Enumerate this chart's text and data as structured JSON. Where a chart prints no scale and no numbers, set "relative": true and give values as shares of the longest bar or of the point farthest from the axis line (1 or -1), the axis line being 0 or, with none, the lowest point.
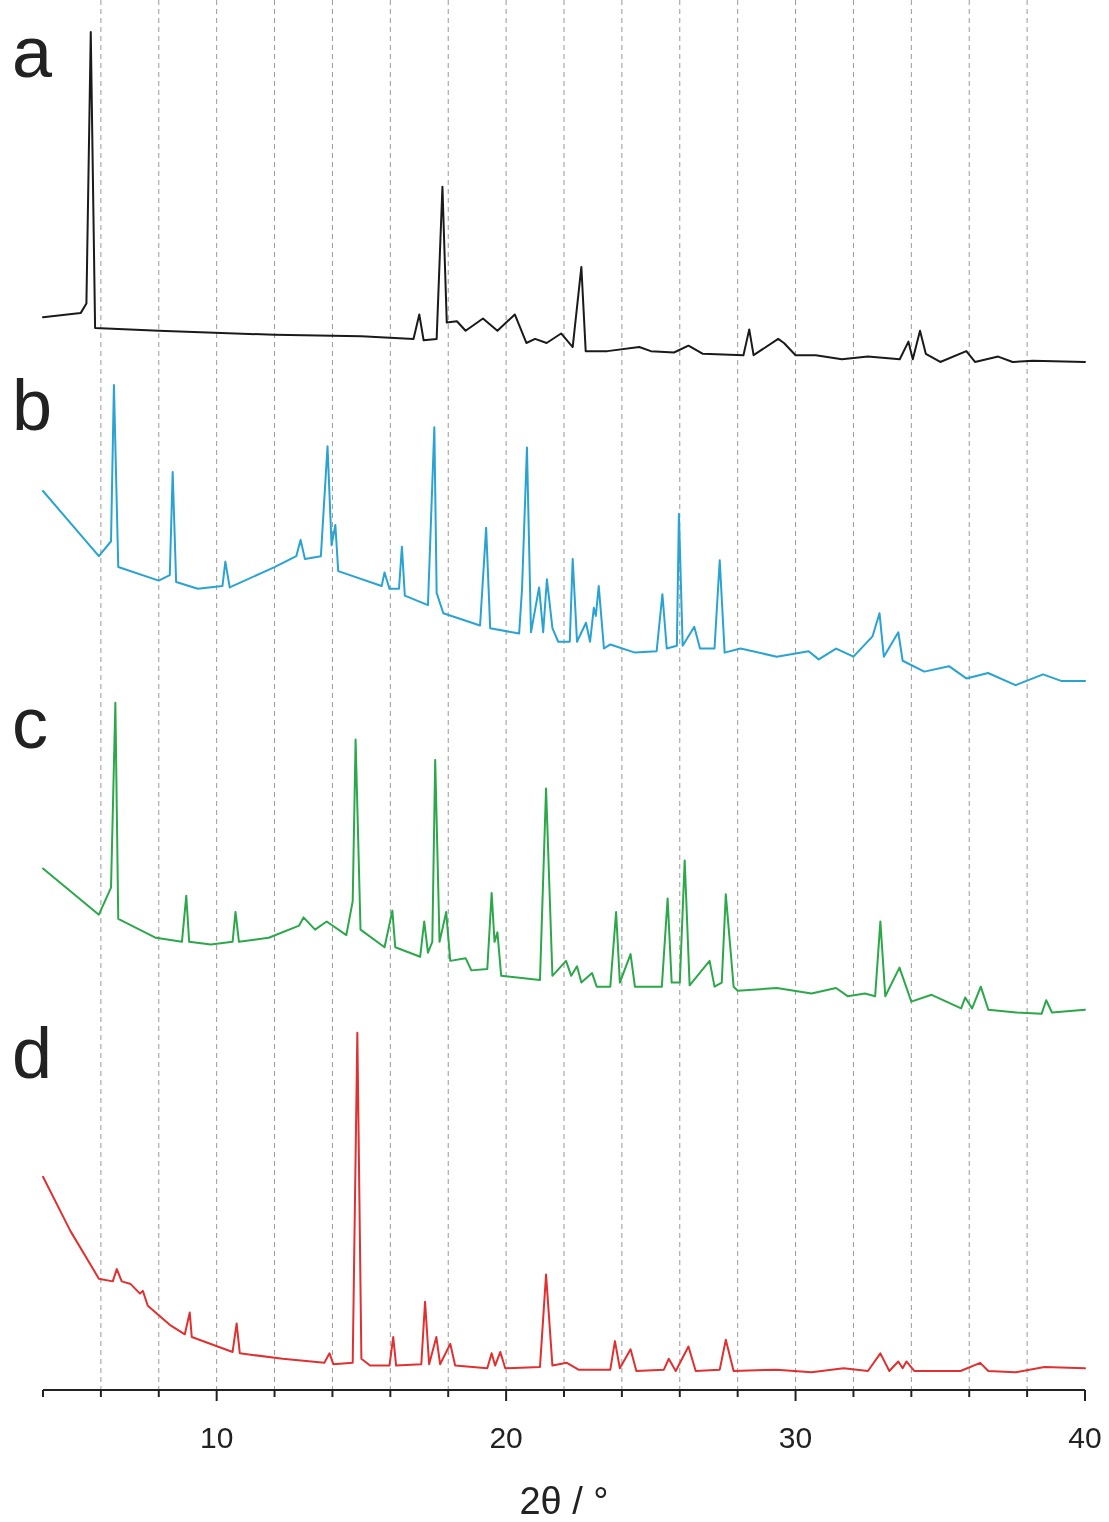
{
  "chart_data": {
    "type": "line",
    "relative": true,
    "xlabel": "2θ / °",
    "xlim": [
      4,
      40
    ],
    "xticks": [
      {
        "value": 4,
        "label": null
      },
      {
        "value": 6,
        "label": null
      },
      {
        "value": 8,
        "label": null
      },
      10,
      {
        "value": 12,
        "label": null
      },
      {
        "value": 14,
        "label": null
      },
      {
        "value": 16,
        "label": null
      },
      {
        "value": 18,
        "label": null
      },
      20,
      {
        "value": 22,
        "label": null
      },
      {
        "value": 24,
        "label": null
      },
      {
        "value": 26,
        "label": null
      },
      {
        "value": 28,
        "label": null
      },
      30,
      {
        "value": 32,
        "label": null
      },
      {
        "value": 34,
        "label": null
      },
      {
        "value": 36,
        "label": null
      },
      {
        "value": 38,
        "label": null
      },
      40
    ],
    "grid": "x",
    "legend": false,
    "series": [
      {
        "name": "a",
        "color": "#1a1a1a",
        "x": [
          4.0,
          5.3,
          5.5,
          5.65,
          5.8,
          8,
          12,
          15,
          16.8,
          17.0,
          17.15,
          17.6,
          17.8,
          17.95,
          18.3,
          18.6,
          19.2,
          19.7,
          20.3,
          20.7,
          21.0,
          21.4,
          21.9,
          22.3,
          22.6,
          22.75,
          23.5,
          24.6,
          25.0,
          25.8,
          26.3,
          26.8,
          28.2,
          28.4,
          28.55,
          29.4,
          29.6,
          30.0,
          30.7,
          31.6,
          32.5,
          33.6,
          33.9,
          34.05,
          34.3,
          34.5,
          35.0,
          35.9,
          36.2,
          37.0,
          37.5,
          38.2,
          40
        ],
        "values": [
          0.79,
          0.793,
          0.8,
          1.0,
          0.782,
          0.78,
          0.777,
          0.776,
          0.774,
          0.792,
          0.773,
          0.774,
          0.886,
          0.786,
          0.787,
          0.78,
          0.789,
          0.78,
          0.792,
          0.771,
          0.774,
          0.771,
          0.778,
          0.768,
          0.827,
          0.765,
          0.765,
          0.768,
          0.765,
          0.764,
          0.769,
          0.763,
          0.762,
          0.781,
          0.762,
          0.774,
          0.771,
          0.762,
          0.762,
          0.759,
          0.761,
          0.759,
          0.772,
          0.759,
          0.78,
          0.763,
          0.757,
          0.765,
          0.757,
          0.761,
          0.757,
          0.758,
          0.757
        ]
      },
      {
        "name": "b",
        "color": "#29a3d1",
        "x": [
          4.0,
          5.93,
          6.35,
          6.45,
          6.6,
          8.0,
          8.38,
          8.48,
          8.6,
          9.35,
          10.2,
          10.3,
          10.45,
          12.0,
          12.75,
          12.9,
          13.05,
          13.6,
          13.83,
          13.97,
          14.1,
          14.2,
          15.7,
          15.8,
          15.97,
          16.3,
          16.4,
          16.5,
          17.3,
          17.52,
          17.6,
          17.83,
          19.1,
          19.31,
          19.45,
          20.45,
          20.55,
          20.72,
          20.86,
          21.14,
          21.28,
          21.41,
          21.6,
          21.8,
          22.2,
          22.3,
          22.45,
          22.76,
          22.9,
          23.03,
          23.1,
          23.2,
          23.38,
          23.6,
          24.45,
          25.2,
          25.4,
          25.55,
          25.9,
          25.97,
          26.1,
          26.5,
          26.7,
          27.2,
          27.38,
          27.55,
          28.1,
          29.35,
          30.45,
          30.8,
          31.4,
          32.0,
          32.66,
          32.9,
          33.05,
          33.55,
          33.7,
          34.45,
          35.3,
          35.9,
          36.65,
          37.6,
          38.55,
          39.2,
          40
        ],
        "values": [
          0.662,
          0.614,
          0.625,
          0.74,
          0.606,
          0.596,
          0.6,
          0.676,
          0.595,
          0.59,
          0.592,
          0.61,
          0.591,
          0.606,
          0.614,
          0.626,
          0.612,
          0.614,
          0.695,
          0.622,
          0.637,
          0.603,
          0.592,
          0.602,
          0.59,
          0.59,
          0.621,
          0.585,
          0.578,
          0.709,
          0.587,
          0.572,
          0.563,
          0.635,
          0.561,
          0.557,
          0.59,
          0.694,
          0.558,
          0.591,
          0.558,
          0.597,
          0.561,
          0.551,
          0.551,
          0.612,
          0.551,
          0.565,
          0.551,
          0.576,
          0.57,
          0.592,
          0.546,
          0.549,
          0.543,
          0.544,
          0.586,
          0.546,
          0.548,
          0.645,
          0.548,
          0.562,
          0.546,
          0.546,
          0.611,
          0.543,
          0.546,
          0.54,
          0.544,
          0.538,
          0.546,
          0.54,
          0.555,
          0.572,
          0.54,
          0.558,
          0.537,
          0.529,
          0.533,
          0.524,
          0.528,
          0.519,
          0.527,
          0.522,
          0.522
        ]
      },
      {
        "name": "c",
        "color": "#2ca84a",
        "x": [
          4.0,
          5.93,
          6.35,
          6.5,
          6.6,
          7.9,
          8.8,
          8.95,
          9.05,
          9.8,
          10.55,
          10.65,
          10.77,
          11.8,
          12.85,
          13.0,
          13.4,
          13.8,
          14.48,
          14.7,
          14.8,
          14.97,
          15.8,
          16.07,
          16.17,
          17.03,
          17.17,
          17.3,
          17.45,
          17.55,
          17.7,
          17.93,
          18.07,
          18.6,
          18.8,
          19.35,
          19.5,
          19.6,
          19.7,
          19.83,
          21.17,
          21.38,
          21.6,
          22.07,
          22.25,
          22.45,
          22.6,
          22.97,
          23.13,
          23.6,
          23.8,
          23.93,
          24.3,
          24.45,
          25.38,
          25.58,
          25.72,
          26.0,
          26.17,
          26.34,
          27.03,
          27.2,
          27.45,
          27.59,
          27.86,
          28.0,
          29.35,
          30.55,
          31.4,
          31.8,
          32.4,
          32.75,
          32.93,
          33.1,
          33.59,
          34.0,
          34.7,
          35.72,
          35.86,
          36.1,
          36.4,
          36.66,
          37.63,
          38.5,
          38.66,
          38.86,
          40
        ],
        "values": [
          0.384,
          0.35,
          0.37,
          0.506,
          0.347,
          0.333,
          0.33,
          0.364,
          0.33,
          0.328,
          0.33,
          0.352,
          0.33,
          0.333,
          0.342,
          0.348,
          0.339,
          0.345,
          0.335,
          0.36,
          0.479,
          0.339,
          0.326,
          0.353,
          0.326,
          0.319,
          0.345,
          0.322,
          0.33,
          0.464,
          0.33,
          0.352,
          0.316,
          0.318,
          0.309,
          0.31,
          0.366,
          0.33,
          0.337,
          0.305,
          0.302,
          0.443,
          0.305,
          0.316,
          0.305,
          0.312,
          0.3,
          0.307,
          0.297,
          0.297,
          0.352,
          0.3,
          0.321,
          0.297,
          0.297,
          0.362,
          0.3,
          0.3,
          0.39,
          0.298,
          0.316,
          0.297,
          0.3,
          0.365,
          0.297,
          0.294,
          0.296,
          0.292,
          0.296,
          0.29,
          0.292,
          0.29,
          0.345,
          0.29,
          0.311,
          0.286,
          0.291,
          0.281,
          0.289,
          0.281,
          0.297,
          0.28,
          0.278,
          0.277,
          0.287,
          0.278,
          0.28
        ]
      },
      {
        "name": "d",
        "color": "#e03030",
        "x": [
          4.0,
          4.95,
          5.93,
          6.41,
          6.55,
          6.72,
          7.03,
          7.35,
          7.45,
          7.62,
          8.38,
          8.9,
          9.07,
          9.14,
          10.55,
          10.69,
          10.8,
          12.28,
          13.72,
          13.9,
          14.03,
          14.7,
          14.86,
          15.0,
          15.3,
          15.97,
          16.1,
          16.2,
          17.07,
          17.2,
          17.34,
          17.59,
          17.72,
          18.07,
          18.24,
          19.35,
          19.5,
          19.62,
          19.8,
          19.97,
          21.17,
          21.38,
          21.6,
          22.1,
          22.5,
          23.6,
          23.76,
          23.93,
          24.3,
          24.5,
          25.45,
          25.62,
          25.86,
          26.3,
          26.55,
          27.38,
          27.59,
          27.86,
          29.35,
          30.55,
          31.66,
          32.5,
          32.93,
          33.24,
          33.55,
          33.7,
          33.83,
          34.1,
          35.7,
          36.38,
          36.66,
          37.6,
          38.6,
          40
        ],
        "values": [
          0.157,
          0.117,
          0.082,
          0.08,
          0.089,
          0.08,
          0.078,
          0.071,
          0.073,
          0.062,
          0.048,
          0.041,
          0.057,
          0.039,
          0.028,
          0.049,
          0.027,
          0.023,
          0.02,
          0.027,
          0.019,
          0.02,
          0.263,
          0.023,
          0.018,
          0.018,
          0.039,
          0.018,
          0.019,
          0.065,
          0.019,
          0.039,
          0.019,
          0.034,
          0.018,
          0.016,
          0.027,
          0.018,
          0.028,
          0.016,
          0.017,
          0.085,
          0.018,
          0.02,
          0.015,
          0.015,
          0.036,
          0.016,
          0.03,
          0.014,
          0.015,
          0.023,
          0.014,
          0.032,
          0.014,
          0.015,
          0.037,
          0.014,
          0.015,
          0.013,
          0.016,
          0.014,
          0.027,
          0.014,
          0.021,
          0.016,
          0.021,
          0.014,
          0.014,
          0.02,
          0.014,
          0.013,
          0.017,
          0.016
        ]
      }
    ]
  }
}
